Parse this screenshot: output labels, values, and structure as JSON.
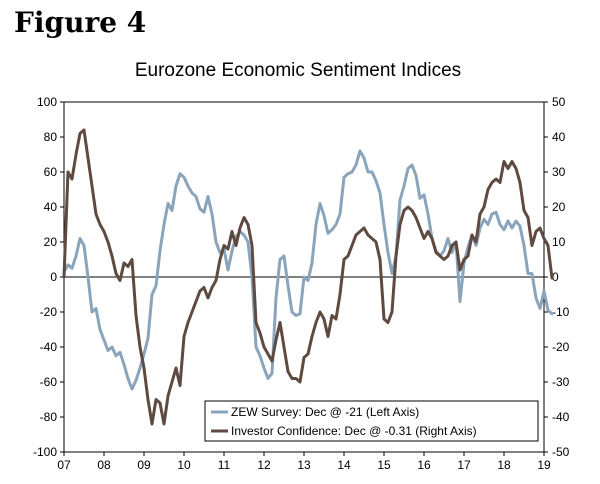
{
  "figure_label": "Figure 4",
  "chart_data": {
    "type": "line",
    "title": "Eurozone Economic Sentiment Indices",
    "x_range": [
      2007.0,
      2019.0
    ],
    "x_ticks": [
      {
        "value": 2007,
        "label": "07"
      },
      {
        "value": 2008,
        "label": "08"
      },
      {
        "value": 2009,
        "label": "09"
      },
      {
        "value": 2010,
        "label": "10"
      },
      {
        "value": 2011,
        "label": "11"
      },
      {
        "value": 2012,
        "label": "12"
      },
      {
        "value": 2013,
        "label": "13"
      },
      {
        "value": 2014,
        "label": "14"
      },
      {
        "value": 2015,
        "label": "15"
      },
      {
        "value": 2016,
        "label": "16"
      },
      {
        "value": 2017,
        "label": "17"
      },
      {
        "value": 2018,
        "label": "18"
      },
      {
        "value": 2019,
        "label": "19"
      }
    ],
    "left_axis": {
      "range": [
        -100,
        100
      ],
      "ticks": [
        "100",
        "80",
        "60",
        "40",
        "20",
        "0",
        "-20",
        "-40",
        "-60",
        "-80",
        "-100"
      ]
    },
    "right_axis": {
      "range": [
        -50,
        50
      ],
      "ticks": [
        "50",
        "40",
        "30",
        "20",
        "10",
        "0",
        "-10",
        "-20",
        "-30",
        "-40",
        "-50"
      ]
    },
    "series": [
      {
        "name": "ZEW Survey: Dec @ -21 (Left Axis)",
        "axis": "left",
        "color": "#8aa4bc",
        "points": [
          [
            2007.0,
            3
          ],
          [
            2007.1,
            7
          ],
          [
            2007.2,
            5
          ],
          [
            2007.3,
            12
          ],
          [
            2007.4,
            22
          ],
          [
            2007.5,
            18
          ],
          [
            2007.6,
            0
          ],
          [
            2007.7,
            -20
          ],
          [
            2007.8,
            -18
          ],
          [
            2007.9,
            -30
          ],
          [
            2008.0,
            -36
          ],
          [
            2008.1,
            -42
          ],
          [
            2008.2,
            -40
          ],
          [
            2008.3,
            -45
          ],
          [
            2008.4,
            -43
          ],
          [
            2008.5,
            -50
          ],
          [
            2008.6,
            -58
          ],
          [
            2008.7,
            -64
          ],
          [
            2008.8,
            -59
          ],
          [
            2008.9,
            -52
          ],
          [
            2009.0,
            -44
          ],
          [
            2009.1,
            -35
          ],
          [
            2009.2,
            -10
          ],
          [
            2009.3,
            -5
          ],
          [
            2009.4,
            15
          ],
          [
            2009.5,
            30
          ],
          [
            2009.6,
            42
          ],
          [
            2009.7,
            38
          ],
          [
            2009.8,
            52
          ],
          [
            2009.9,
            59
          ],
          [
            2010.0,
            57
          ],
          [
            2010.1,
            52
          ],
          [
            2010.2,
            48
          ],
          [
            2010.3,
            46
          ],
          [
            2010.4,
            39
          ],
          [
            2010.5,
            37
          ],
          [
            2010.6,
            46
          ],
          [
            2010.7,
            36
          ],
          [
            2010.8,
            20
          ],
          [
            2010.9,
            14
          ],
          [
            2011.0,
            16
          ],
          [
            2011.1,
            4
          ],
          [
            2011.2,
            15
          ],
          [
            2011.3,
            23
          ],
          [
            2011.4,
            26
          ],
          [
            2011.5,
            24
          ],
          [
            2011.6,
            20
          ],
          [
            2011.7,
            0
          ],
          [
            2011.8,
            -40
          ],
          [
            2011.9,
            -45
          ],
          [
            2012.0,
            -52
          ],
          [
            2012.1,
            -58
          ],
          [
            2012.2,
            -55
          ],
          [
            2012.3,
            -12
          ],
          [
            2012.4,
            10
          ],
          [
            2012.5,
            12
          ],
          [
            2012.6,
            -5
          ],
          [
            2012.7,
            -20
          ],
          [
            2012.8,
            -22
          ],
          [
            2012.9,
            -21
          ],
          [
            2013.0,
            0
          ],
          [
            2013.1,
            -2
          ],
          [
            2013.2,
            8
          ],
          [
            2013.3,
            30
          ],
          [
            2013.4,
            42
          ],
          [
            2013.5,
            35
          ],
          [
            2013.6,
            25
          ],
          [
            2013.7,
            27
          ],
          [
            2013.8,
            30
          ],
          [
            2013.9,
            36
          ],
          [
            2014.0,
            57
          ],
          [
            2014.1,
            59
          ],
          [
            2014.2,
            60
          ],
          [
            2014.3,
            64
          ],
          [
            2014.4,
            72
          ],
          [
            2014.5,
            68
          ],
          [
            2014.6,
            60
          ],
          [
            2014.7,
            60
          ],
          [
            2014.8,
            55
          ],
          [
            2014.9,
            48
          ],
          [
            2015.0,
            30
          ],
          [
            2015.1,
            14
          ],
          [
            2015.2,
            2
          ],
          [
            2015.3,
            12
          ],
          [
            2015.4,
            44
          ],
          [
            2015.5,
            52
          ],
          [
            2015.6,
            62
          ],
          [
            2015.7,
            64
          ],
          [
            2015.8,
            58
          ],
          [
            2015.9,
            45
          ],
          [
            2016.0,
            47
          ],
          [
            2016.1,
            36
          ],
          [
            2016.2,
            22
          ],
          [
            2016.3,
            15
          ],
          [
            2016.4,
            12
          ],
          [
            2016.5,
            15
          ],
          [
            2016.6,
            22
          ],
          [
            2016.7,
            14
          ],
          [
            2016.8,
            20
          ],
          [
            2016.9,
            -14
          ],
          [
            2017.0,
            8
          ],
          [
            2017.1,
            17
          ],
          [
            2017.2,
            24
          ],
          [
            2017.3,
            18
          ],
          [
            2017.4,
            28
          ],
          [
            2017.5,
            33
          ],
          [
            2017.6,
            30
          ],
          [
            2017.7,
            36
          ],
          [
            2017.8,
            37
          ],
          [
            2017.9,
            30
          ],
          [
            2018.0,
            27
          ],
          [
            2018.1,
            32
          ],
          [
            2018.2,
            28
          ],
          [
            2018.3,
            32
          ],
          [
            2018.4,
            29
          ],
          [
            2018.5,
            18
          ],
          [
            2018.6,
            2
          ],
          [
            2018.7,
            2
          ],
          [
            2018.8,
            -12
          ],
          [
            2018.9,
            -18
          ],
          [
            2019.0,
            -8
          ],
          [
            2019.1,
            -19
          ],
          [
            2019.2,
            -21
          ]
        ]
      },
      {
        "name": "Investor Confidence: Dec @ -0.31 (Right Axis)",
        "axis": "right",
        "color": "#5e4a40",
        "points": [
          [
            2007.0,
            0
          ],
          [
            2007.1,
            30
          ],
          [
            2007.2,
            28
          ],
          [
            2007.3,
            35
          ],
          [
            2007.4,
            41
          ],
          [
            2007.5,
            42
          ],
          [
            2007.6,
            34
          ],
          [
            2007.7,
            26
          ],
          [
            2007.8,
            18
          ],
          [
            2007.9,
            15
          ],
          [
            2008.0,
            13
          ],
          [
            2008.1,
            10
          ],
          [
            2008.2,
            6
          ],
          [
            2008.3,
            1
          ],
          [
            2008.4,
            -1
          ],
          [
            2008.5,
            4
          ],
          [
            2008.6,
            3
          ],
          [
            2008.7,
            5
          ],
          [
            2008.8,
            -11
          ],
          [
            2008.9,
            -20
          ],
          [
            2009.0,
            -26
          ],
          [
            2009.1,
            -35
          ],
          [
            2009.2,
            -42
          ],
          [
            2009.3,
            -35
          ],
          [
            2009.4,
            -36
          ],
          [
            2009.5,
            -42
          ],
          [
            2009.6,
            -34
          ],
          [
            2009.7,
            -30
          ],
          [
            2009.8,
            -26
          ],
          [
            2009.9,
            -31
          ],
          [
            2010.0,
            -17
          ],
          [
            2010.1,
            -13
          ],
          [
            2010.2,
            -10
          ],
          [
            2010.3,
            -7
          ],
          [
            2010.4,
            -4
          ],
          [
            2010.5,
            -3
          ],
          [
            2010.6,
            -6
          ],
          [
            2010.7,
            -3
          ],
          [
            2010.8,
            -1
          ],
          [
            2010.9,
            5
          ],
          [
            2011.0,
            9
          ],
          [
            2011.1,
            8
          ],
          [
            2011.2,
            13
          ],
          [
            2011.3,
            9
          ],
          [
            2011.4,
            14
          ],
          [
            2011.5,
            17
          ],
          [
            2011.6,
            15
          ],
          [
            2011.7,
            9
          ],
          [
            2011.8,
            -13
          ],
          [
            2011.9,
            -16
          ],
          [
            2012.0,
            -20
          ],
          [
            2012.1,
            -22
          ],
          [
            2012.2,
            -24
          ],
          [
            2012.3,
            -18
          ],
          [
            2012.4,
            -13
          ],
          [
            2012.5,
            -20
          ],
          [
            2012.6,
            -27
          ],
          [
            2012.7,
            -29
          ],
          [
            2012.8,
            -29
          ],
          [
            2012.9,
            -30
          ],
          [
            2013.0,
            -23
          ],
          [
            2013.1,
            -22
          ],
          [
            2013.2,
            -17
          ],
          [
            2013.3,
            -13
          ],
          [
            2013.4,
            -10
          ],
          [
            2013.5,
            -12
          ],
          [
            2013.6,
            -17
          ],
          [
            2013.7,
            -11
          ],
          [
            2013.8,
            -12
          ],
          [
            2013.9,
            -5
          ],
          [
            2014.0,
            5
          ],
          [
            2014.1,
            6
          ],
          [
            2014.2,
            9
          ],
          [
            2014.3,
            12
          ],
          [
            2014.4,
            13
          ],
          [
            2014.5,
            14
          ],
          [
            2014.6,
            12
          ],
          [
            2014.7,
            11
          ],
          [
            2014.8,
            10
          ],
          [
            2014.9,
            5
          ],
          [
            2015.0,
            -12
          ],
          [
            2015.1,
            -13
          ],
          [
            2015.2,
            -10
          ],
          [
            2015.3,
            6
          ],
          [
            2015.4,
            15
          ],
          [
            2015.5,
            19
          ],
          [
            2015.6,
            20
          ],
          [
            2015.7,
            19
          ],
          [
            2015.8,
            17
          ],
          [
            2015.9,
            14
          ],
          [
            2016.0,
            11
          ],
          [
            2016.1,
            13
          ],
          [
            2016.2,
            11
          ],
          [
            2016.3,
            7
          ],
          [
            2016.4,
            6
          ],
          [
            2016.5,
            5
          ],
          [
            2016.6,
            6
          ],
          [
            2016.7,
            9
          ],
          [
            2016.8,
            10
          ],
          [
            2016.9,
            2
          ],
          [
            2017.0,
            5
          ],
          [
            2017.1,
            6
          ],
          [
            2017.2,
            12
          ],
          [
            2017.3,
            10
          ],
          [
            2017.4,
            18
          ],
          [
            2017.5,
            20
          ],
          [
            2017.6,
            25
          ],
          [
            2017.7,
            27
          ],
          [
            2017.8,
            28
          ],
          [
            2017.9,
            27
          ],
          [
            2018.0,
            33
          ],
          [
            2018.1,
            31
          ],
          [
            2018.2,
            33
          ],
          [
            2018.3,
            31
          ],
          [
            2018.4,
            27
          ],
          [
            2018.5,
            19
          ],
          [
            2018.6,
            17
          ],
          [
            2018.7,
            9
          ],
          [
            2018.8,
            13
          ],
          [
            2018.9,
            14
          ],
          [
            2019.0,
            11
          ],
          [
            2019.1,
            9
          ],
          [
            2019.2,
            -0.31
          ]
        ]
      }
    ],
    "legend": [
      {
        "label": "ZEW Survey: Dec @ -21 (Left Axis)",
        "color": "#8aa4bc"
      },
      {
        "label": "Investor Confidence: Dec @ -0.31 (Right Axis)",
        "color": "#5e4a40"
      }
    ],
    "legend_position": "bottom-right",
    "grid": false
  }
}
